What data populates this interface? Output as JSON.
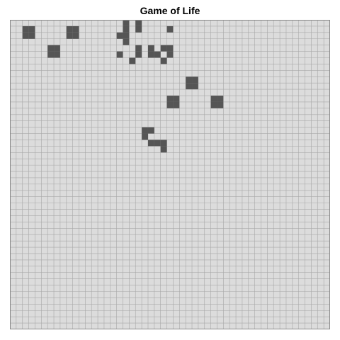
{
  "title": "Game of Life",
  "board": {
    "columns": 51,
    "rows": 49,
    "colors": {
      "dead": "#dcdcdc",
      "alive": "#555555",
      "grid": "#a8a8a8",
      "border": "#888888"
    },
    "live_cells": [
      [
        2,
        1
      ],
      [
        3,
        1
      ],
      [
        2,
        2
      ],
      [
        3,
        2
      ],
      [
        9,
        1
      ],
      [
        10,
        1
      ],
      [
        9,
        2
      ],
      [
        10,
        2
      ],
      [
        6,
        4
      ],
      [
        7,
        4
      ],
      [
        6,
        5
      ],
      [
        7,
        5
      ],
      [
        18,
        0
      ],
      [
        20,
        0
      ],
      [
        18,
        1
      ],
      [
        20,
        1
      ],
      [
        25,
        1
      ],
      [
        17,
        2
      ],
      [
        18,
        2
      ],
      [
        18,
        3
      ],
      [
        20,
        4
      ],
      [
        22,
        4
      ],
      [
        24,
        4
      ],
      [
        25,
        4
      ],
      [
        17,
        5
      ],
      [
        20,
        5
      ],
      [
        22,
        5
      ],
      [
        23,
        5
      ],
      [
        25,
        5
      ],
      [
        19,
        6
      ],
      [
        24,
        6
      ],
      [
        28,
        9
      ],
      [
        29,
        9
      ],
      [
        28,
        10
      ],
      [
        29,
        10
      ],
      [
        25,
        12
      ],
      [
        26,
        12
      ],
      [
        32,
        12
      ],
      [
        33,
        12
      ],
      [
        25,
        13
      ],
      [
        26,
        13
      ],
      [
        32,
        13
      ],
      [
        33,
        13
      ],
      [
        21,
        17
      ],
      [
        22,
        17
      ],
      [
        21,
        18
      ],
      [
        22,
        19
      ],
      [
        23,
        19
      ],
      [
        24,
        19
      ],
      [
        24,
        20
      ]
    ]
  }
}
